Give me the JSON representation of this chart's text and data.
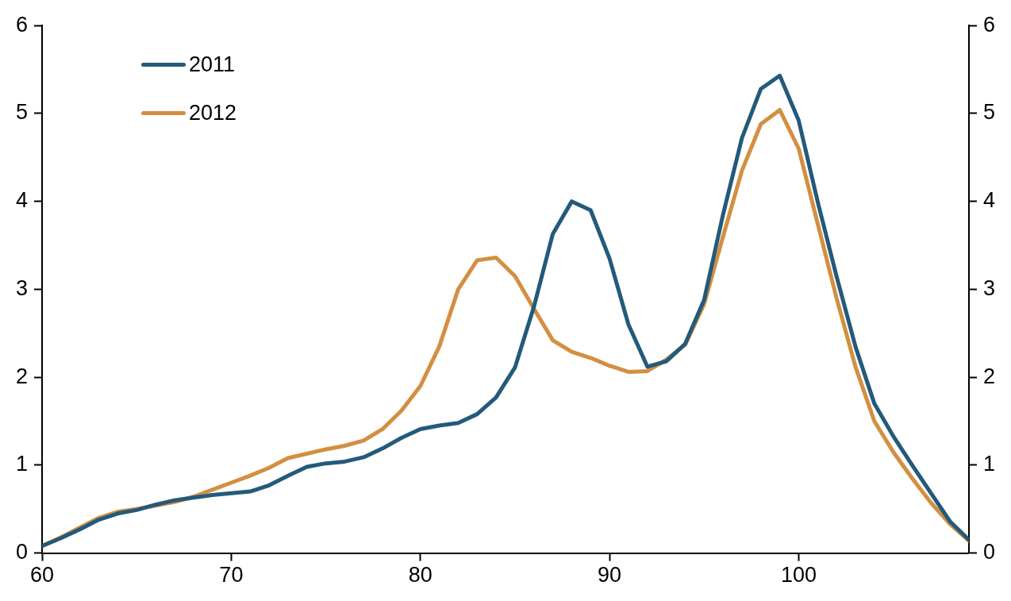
{
  "chart_data": {
    "type": "line",
    "x": [
      60,
      61,
      62,
      63,
      64,
      65,
      66,
      67,
      68,
      69,
      70,
      71,
      72,
      73,
      74,
      75,
      76,
      77,
      78,
      79,
      80,
      81,
      82,
      83,
      84,
      85,
      86,
      87,
      88,
      89,
      90,
      91,
      92,
      93,
      94,
      95,
      96,
      97,
      98,
      99,
      100,
      101,
      102,
      103,
      104,
      105,
      106,
      107,
      108,
      109
    ],
    "series": [
      {
        "name": "2011",
        "color": "#235a7b",
        "values": [
          0.08,
          0.17,
          0.27,
          0.38,
          0.45,
          0.49,
          0.55,
          0.6,
          0.63,
          0.66,
          0.68,
          0.7,
          0.77,
          0.88,
          0.98,
          1.02,
          1.04,
          1.09,
          1.19,
          1.31,
          1.41,
          1.45,
          1.48,
          1.58,
          1.77,
          2.11,
          2.8,
          3.63,
          4.0,
          3.9,
          3.35,
          2.6,
          2.12,
          2.18,
          2.38,
          2.88,
          3.85,
          4.72,
          5.28,
          5.43,
          4.92,
          4.0,
          3.15,
          2.35,
          1.7,
          1.33,
          1.0,
          0.68,
          0.36,
          0.15
        ]
      },
      {
        "name": "2012",
        "color": "#d38f40",
        "values": [
          0.08,
          0.18,
          0.29,
          0.4,
          0.47,
          0.5,
          0.54,
          0.58,
          0.64,
          0.72,
          0.8,
          0.88,
          0.97,
          1.08,
          1.13,
          1.18,
          1.22,
          1.28,
          1.41,
          1.62,
          1.9,
          2.35,
          3.0,
          3.33,
          3.36,
          3.15,
          2.78,
          2.42,
          2.29,
          2.22,
          2.13,
          2.06,
          2.07,
          2.2,
          2.37,
          2.83,
          3.6,
          4.35,
          4.88,
          5.04,
          4.6,
          3.75,
          2.9,
          2.12,
          1.5,
          1.15,
          0.85,
          0.57,
          0.33,
          0.14
        ]
      }
    ],
    "xlim": [
      60,
      109
    ],
    "xticks": [
      60,
      70,
      80,
      90,
      100
    ],
    "ylim": [
      0,
      6
    ],
    "yticks": [
      0,
      1,
      2,
      3,
      4,
      5,
      6
    ],
    "y2lim": [
      0,
      6
    ],
    "y2ticks": [
      0,
      1,
      2,
      3,
      4,
      5,
      6
    ],
    "grid": false,
    "legend": "top left",
    "marker": "none",
    "line_style": "solid"
  }
}
